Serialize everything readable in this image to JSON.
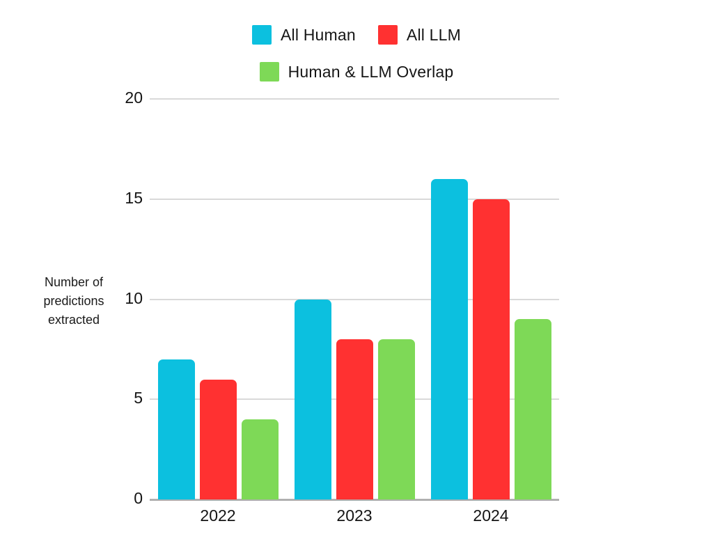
{
  "chart_data": {
    "type": "bar",
    "title": "",
    "xlabel": "",
    "ylabel": "Number of\npredictions\nextracted",
    "categories": [
      "2022",
      "2023",
      "2024"
    ],
    "series": [
      {
        "name": "All Human",
        "color": "#0cc0df",
        "values": [
          7,
          10,
          16
        ]
      },
      {
        "name": "All LLM",
        "color": "#ff3131",
        "values": [
          6,
          8,
          15
        ]
      },
      {
        "name": "Human & LLM Overlap",
        "color": "#7ed957",
        "values": [
          4,
          8,
          9
        ]
      }
    ],
    "ylim": [
      0,
      20
    ],
    "yticks": [
      0,
      5,
      10,
      15,
      20
    ],
    "grid": true,
    "legend_position": "top-center",
    "background_color": "#ffffff",
    "gridline_color": "#d9d9d9",
    "axis_line_color": "#b0b0b0",
    "text_color": "#141414"
  }
}
